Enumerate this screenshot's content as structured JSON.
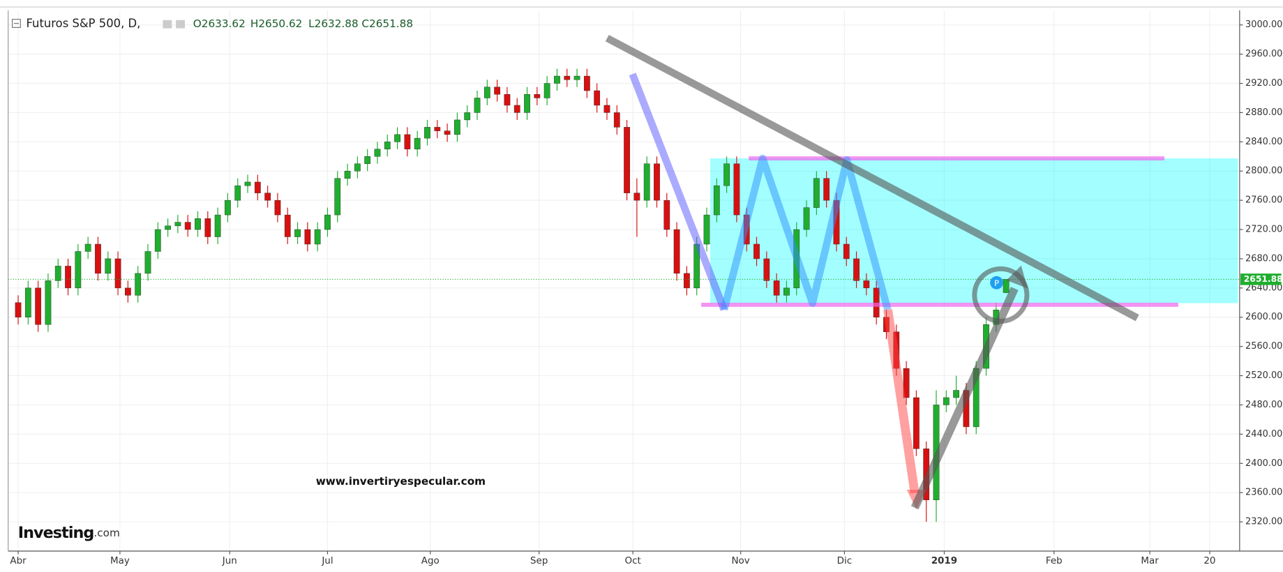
{
  "chart_data": {
    "type": "candlestick",
    "title": "Futuros S&P 500, D,",
    "header_stats": [
      "O2633.62",
      "H2650.62",
      "L2632.88",
      "C2651.88"
    ],
    "last_price_label": "2651.88",
    "watermark": "www.invertiryespecular.com",
    "source_logo": "Investing",
    "source_logo_suffix": ".com",
    "up_color": "#1fae2e",
    "down_color": "#d81010",
    "grid": true,
    "xlim": [
      -1,
      122.4
    ],
    "xticks": [
      {
        "value": 0,
        "label": "Abr"
      },
      {
        "value": 10.2,
        "label": "May"
      },
      {
        "value": 21.2,
        "label": "Jun"
      },
      {
        "value": 31,
        "label": "Jul"
      },
      {
        "value": 41.3,
        "label": "Ago"
      },
      {
        "value": 52.2,
        "label": "Sep"
      },
      {
        "value": 61.6,
        "label": "Oct"
      },
      {
        "value": 72.4,
        "label": "Nov"
      },
      {
        "value": 82.8,
        "label": "Dic"
      },
      {
        "value": 92.8,
        "label": "2019"
      },
      {
        "value": 103.8,
        "label": "Feb"
      },
      {
        "value": 113.4,
        "label": "Mar"
      },
      {
        "value": 119.4,
        "label": "20"
      }
    ],
    "ylim": [
      2280,
      3020
    ],
    "yticks": [
      {
        "value": 2320,
        "label": "2320.00"
      },
      {
        "value": 2360,
        "label": "2360.00"
      },
      {
        "value": 2400,
        "label": "2400.00"
      },
      {
        "value": 2440,
        "label": "2440.00"
      },
      {
        "value": 2480,
        "label": "2480.00"
      },
      {
        "value": 2520,
        "label": "2520.00"
      },
      {
        "value": 2560,
        "label": "2560.00"
      },
      {
        "value": 2600,
        "label": "2600.00"
      },
      {
        "value": 2640,
        "label": "2640.00"
      },
      {
        "value": 2680,
        "label": "2680.00"
      },
      {
        "value": 2720,
        "label": "2720.00"
      },
      {
        "value": 2760,
        "label": "2760.00"
      },
      {
        "value": 2800,
        "label": "2800.00"
      },
      {
        "value": 2840,
        "label": "2840.00"
      },
      {
        "value": 2880,
        "label": "2880.00"
      },
      {
        "value": 2920,
        "label": "2920.00"
      },
      {
        "value": 2960,
        "label": "2960.00"
      },
      {
        "value": 3000,
        "label": "3000.00"
      }
    ],
    "ohlc": [
      [
        2620,
        2630,
        2590,
        2600
      ],
      [
        2600,
        2650,
        2590,
        2640
      ],
      [
        2640,
        2650,
        2580,
        2590
      ],
      [
        2590,
        2660,
        2580,
        2650
      ],
      [
        2650,
        2680,
        2640,
        2670
      ],
      [
        2670,
        2680,
        2630,
        2640
      ],
      [
        2640,
        2700,
        2630,
        2690
      ],
      [
        2690,
        2710,
        2680,
        2700
      ],
      [
        2700,
        2710,
        2650,
        2660
      ],
      [
        2660,
        2690,
        2650,
        2680
      ],
      [
        2680,
        2690,
        2630,
        2640
      ],
      [
        2640,
        2650,
        2620,
        2630
      ],
      [
        2630,
        2670,
        2620,
        2660
      ],
      [
        2660,
        2700,
        2650,
        2690
      ],
      [
        2690,
        2730,
        2680,
        2720
      ],
      [
        2720,
        2735,
        2710,
        2725
      ],
      [
        2725,
        2740,
        2715,
        2730
      ],
      [
        2730,
        2740,
        2710,
        2720
      ],
      [
        2720,
        2745,
        2710,
        2735
      ],
      [
        2735,
        2745,
        2700,
        2710
      ],
      [
        2710,
        2750,
        2700,
        2740
      ],
      [
        2740,
        2770,
        2730,
        2760
      ],
      [
        2760,
        2790,
        2750,
        2780
      ],
      [
        2780,
        2795,
        2770,
        2785
      ],
      [
        2785,
        2795,
        2760,
        2770
      ],
      [
        2770,
        2780,
        2750,
        2760
      ],
      [
        2760,
        2770,
        2730,
        2740
      ],
      [
        2740,
        2750,
        2700,
        2710
      ],
      [
        2710,
        2730,
        2700,
        2720
      ],
      [
        2720,
        2730,
        2690,
        2700
      ],
      [
        2700,
        2730,
        2690,
        2720
      ],
      [
        2720,
        2750,
        2710,
        2740
      ],
      [
        2740,
        2800,
        2730,
        2790
      ],
      [
        2790,
        2810,
        2780,
        2800
      ],
      [
        2800,
        2820,
        2790,
        2810
      ],
      [
        2810,
        2830,
        2800,
        2820
      ],
      [
        2820,
        2840,
        2810,
        2830
      ],
      [
        2830,
        2850,
        2820,
        2840
      ],
      [
        2840,
        2860,
        2830,
        2850
      ],
      [
        2850,
        2860,
        2820,
        2830
      ],
      [
        2830,
        2855,
        2820,
        2845
      ],
      [
        2845,
        2870,
        2835,
        2860
      ],
      [
        2860,
        2870,
        2845,
        2855
      ],
      [
        2855,
        2865,
        2840,
        2850
      ],
      [
        2850,
        2880,
        2840,
        2870
      ],
      [
        2870,
        2890,
        2860,
        2880
      ],
      [
        2880,
        2910,
        2870,
        2900
      ],
      [
        2900,
        2925,
        2890,
        2915
      ],
      [
        2915,
        2925,
        2895,
        2905
      ],
      [
        2905,
        2915,
        2880,
        2890
      ],
      [
        2890,
        2900,
        2870,
        2880
      ],
      [
        2880,
        2915,
        2870,
        2905
      ],
      [
        2905,
        2915,
        2890,
        2900
      ],
      [
        2900,
        2930,
        2890,
        2920
      ],
      [
        2920,
        2940,
        2910,
        2930
      ],
      [
        2930,
        2940,
        2915,
        2925
      ],
      [
        2925,
        2940,
        2915,
        2930
      ],
      [
        2930,
        2940,
        2900,
        2910
      ],
      [
        2910,
        2920,
        2880,
        2890
      ],
      [
        2890,
        2900,
        2870,
        2880
      ],
      [
        2880,
        2890,
        2850,
        2860
      ],
      [
        2860,
        2870,
        2760,
        2770
      ],
      [
        2770,
        2790,
        2710,
        2760
      ],
      [
        2760,
        2820,
        2750,
        2810
      ],
      [
        2810,
        2820,
        2750,
        2760
      ],
      [
        2760,
        2770,
        2710,
        2720
      ],
      [
        2720,
        2730,
        2650,
        2660
      ],
      [
        2660,
        2670,
        2630,
        2640
      ],
      [
        2640,
        2710,
        2630,
        2700
      ],
      [
        2700,
        2750,
        2690,
        2740
      ],
      [
        2740,
        2790,
        2730,
        2780
      ],
      [
        2780,
        2820,
        2770,
        2810
      ],
      [
        2810,
        2820,
        2730,
        2740
      ],
      [
        2740,
        2750,
        2690,
        2700
      ],
      [
        2700,
        2710,
        2670,
        2680
      ],
      [
        2680,
        2690,
        2640,
        2650
      ],
      [
        2650,
        2660,
        2620,
        2630
      ],
      [
        2630,
        2650,
        2620,
        2640
      ],
      [
        2640,
        2730,
        2630,
        2720
      ],
      [
        2720,
        2760,
        2710,
        2750
      ],
      [
        2750,
        2800,
        2740,
        2790
      ],
      [
        2790,
        2800,
        2750,
        2760
      ],
      [
        2760,
        2770,
        2690,
        2700
      ],
      [
        2700,
        2710,
        2670,
        2680
      ],
      [
        2680,
        2690,
        2640,
        2650
      ],
      [
        2650,
        2660,
        2630,
        2640
      ],
      [
        2640,
        2650,
        2590,
        2600
      ],
      [
        2600,
        2610,
        2570,
        2580
      ],
      [
        2580,
        2590,
        2520,
        2530
      ],
      [
        2530,
        2540,
        2480,
        2490
      ],
      [
        2490,
        2500,
        2410,
        2420
      ],
      [
        2420,
        2430,
        2320,
        2350
      ],
      [
        2350,
        2500,
        2320,
        2480
      ],
      [
        2480,
        2500,
        2470,
        2490
      ],
      [
        2490,
        2520,
        2480,
        2500
      ],
      [
        2500,
        2510,
        2440,
        2450
      ],
      [
        2450,
        2540,
        2440,
        2530
      ],
      [
        2530,
        2600,
        2520,
        2590
      ],
      [
        2590,
        2620,
        2580,
        2610
      ],
      [
        2633.62,
        2650.62,
        2632.88,
        2651.88
      ]
    ]
  }
}
